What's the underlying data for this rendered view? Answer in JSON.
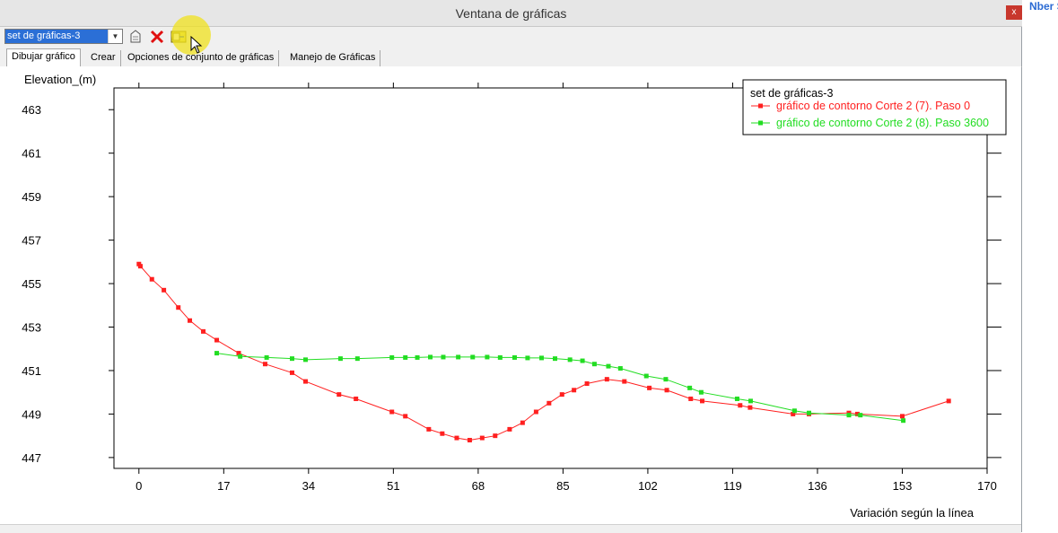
{
  "window": {
    "title": "Ventana de gráficas",
    "close_label": "x"
  },
  "toolbar": {
    "selected_set": "set de gráficas-3",
    "buttons": [
      {
        "icon": "new-plot-icon"
      },
      {
        "icon": "delete-icon"
      },
      {
        "icon": "export-icon"
      }
    ]
  },
  "tabs": [
    "Dibujar gráfico",
    "Crear",
    "Opciones de conjunto de gráficas",
    "Manejo de Gráficas"
  ],
  "right_panel": {
    "text": "Nber S"
  },
  "colors": {
    "red_series": "#ff2020",
    "green_series": "#22dd22",
    "accent": "#2b6fd6"
  },
  "chart_data": {
    "type": "line",
    "ylabel": "Elevation_(m)",
    "xlabel": "Variación según la línea",
    "xlim": [
      -5,
      170
    ],
    "ylim": [
      446.5,
      464
    ],
    "x_ticks": [
      0,
      17,
      34,
      51,
      68,
      85,
      102,
      119,
      136,
      153,
      170
    ],
    "y_ticks": [
      447,
      449,
      451,
      453,
      455,
      457,
      459,
      461,
      463
    ],
    "legend_title": "set de gráficas-3",
    "legend_position": "top-right",
    "grid": false,
    "series": [
      {
        "name": "gráfico de contorno Corte 2 (7). Paso 0",
        "color": "#ff2020",
        "x": [
          0,
          0.3,
          2.6,
          5,
          7.9,
          10.2,
          12.9,
          15.6,
          20,
          25.3,
          30.7,
          33.4,
          40.1,
          43.5,
          50.7,
          53.4,
          58.1,
          60.8,
          63.7,
          66.3,
          68.8,
          71.4,
          74.3,
          76.9,
          79.6,
          82.2,
          84.8,
          87.2,
          89.8,
          93.8,
          97.3,
          102.3,
          105.8,
          110.6,
          112.9,
          120.5,
          122.5,
          131.1,
          134.3,
          142.3,
          144,
          153,
          162.3
        ],
        "y": [
          455.9,
          455.8,
          455.2,
          454.7,
          453.9,
          453.3,
          452.8,
          452.4,
          451.8,
          451.3,
          450.9,
          450.5,
          449.9,
          449.7,
          449.1,
          448.9,
          448.3,
          448.1,
          447.9,
          447.8,
          447.9,
          448,
          448.3,
          448.6,
          449.1,
          449.5,
          449.9,
          450.1,
          450.4,
          450.6,
          450.5,
          450.2,
          450.1,
          449.7,
          449.6,
          449.4,
          449.3,
          449,
          449,
          449.05,
          449,
          448.9,
          449.6
        ]
      },
      {
        "name": "gráfico de contorno Corte 2 (8). Paso 3600",
        "color": "#22dd22",
        "x": [
          15.6,
          20.3,
          25.6,
          30.7,
          33.4,
          40.4,
          43.8,
          50.7,
          53.4,
          55.8,
          58.4,
          61,
          64,
          66.9,
          69.8,
          72.4,
          75.3,
          77.9,
          80.7,
          83.4,
          86.4,
          88.9,
          91.3,
          94.1,
          96.5,
          101.7,
          105.6,
          110.4,
          112.7,
          119.9,
          122.6,
          131.4,
          134.3,
          142.3,
          144.6,
          153.2
        ],
        "y": [
          451.8,
          451.65,
          451.6,
          451.55,
          451.5,
          451.55,
          451.55,
          451.6,
          451.6,
          451.6,
          451.62,
          451.62,
          451.62,
          451.62,
          451.62,
          451.6,
          451.6,
          451.58,
          451.58,
          451.55,
          451.5,
          451.45,
          451.3,
          451.2,
          451.1,
          450.75,
          450.6,
          450.2,
          450,
          449.7,
          449.6,
          449.15,
          449.05,
          448.95,
          448.95,
          448.7
        ]
      }
    ]
  }
}
